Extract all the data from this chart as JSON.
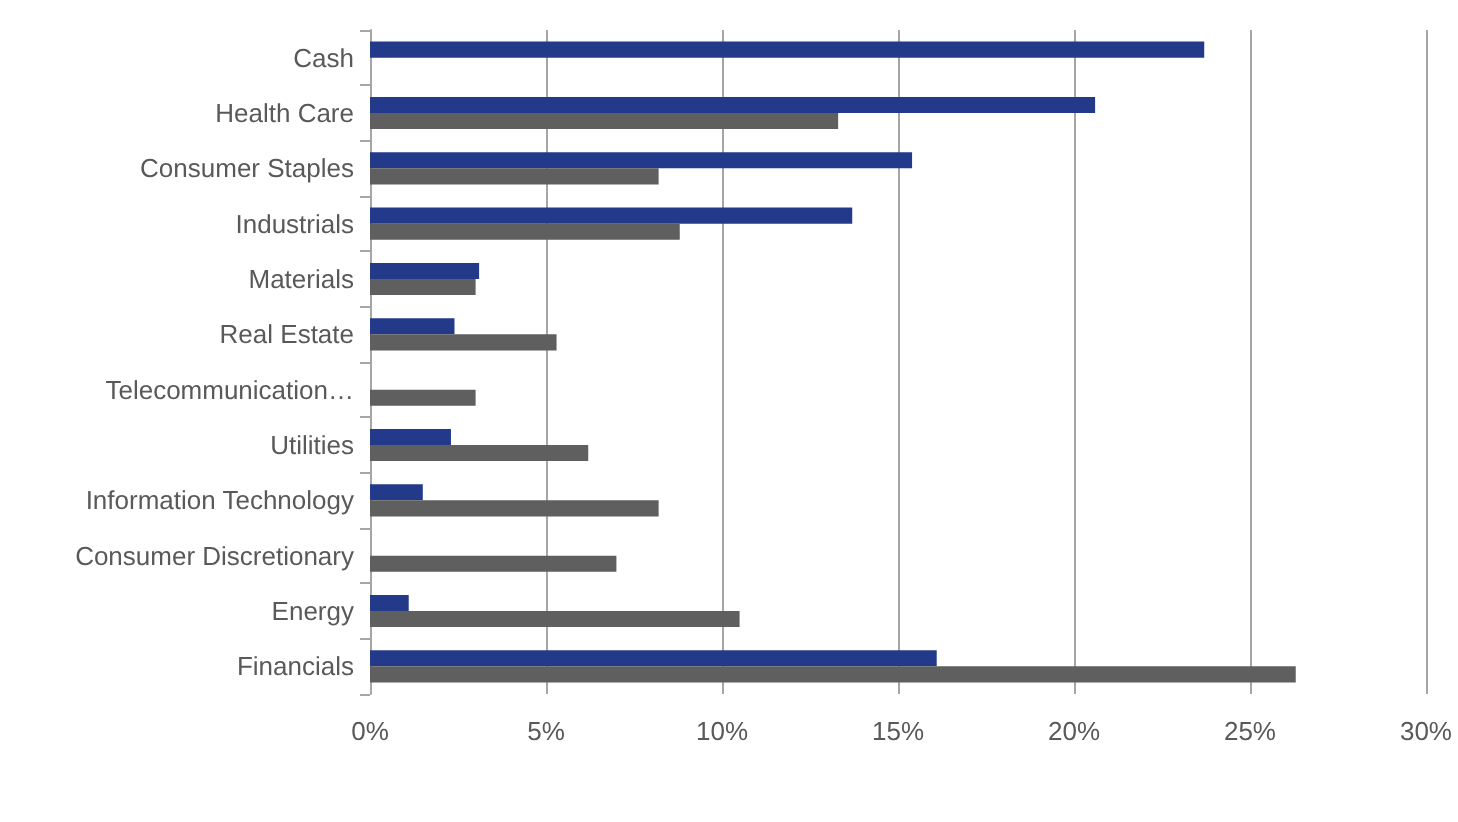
{
  "chart_data": {
    "type": "bar",
    "orientation": "horizontal",
    "categories": [
      "Cash",
      "Health Care",
      "Consumer Staples",
      "Industrials",
      "Materials",
      "Real Estate",
      "Telecommunication…",
      "Utilities",
      "Information Technology",
      "Consumer Discretionary",
      "Energy",
      "Financials"
    ],
    "series": [
      {
        "color": "#233a8b",
        "values": [
          23.7,
          20.6,
          15.4,
          13.7,
          3.1,
          2.4,
          null,
          2.3,
          1.5,
          null,
          1.1,
          16.1
        ]
      },
      {
        "color": "#5f5f5f",
        "values": [
          null,
          13.3,
          8.2,
          8.8,
          3.0,
          5.3,
          3.0,
          6.2,
          8.2,
          7.0,
          10.5,
          26.3
        ]
      }
    ],
    "xlim": [
      0,
      30
    ],
    "xticks": [
      {
        "value": 0,
        "label": "0%"
      },
      {
        "value": 5,
        "label": "5%"
      },
      {
        "value": 10,
        "label": "10%"
      },
      {
        "value": 15,
        "label": "15%"
      },
      {
        "value": 20,
        "label": "20%"
      },
      {
        "value": 25,
        "label": "25%"
      },
      {
        "value": 30,
        "label": "30%"
      }
    ],
    "grid": "x"
  }
}
